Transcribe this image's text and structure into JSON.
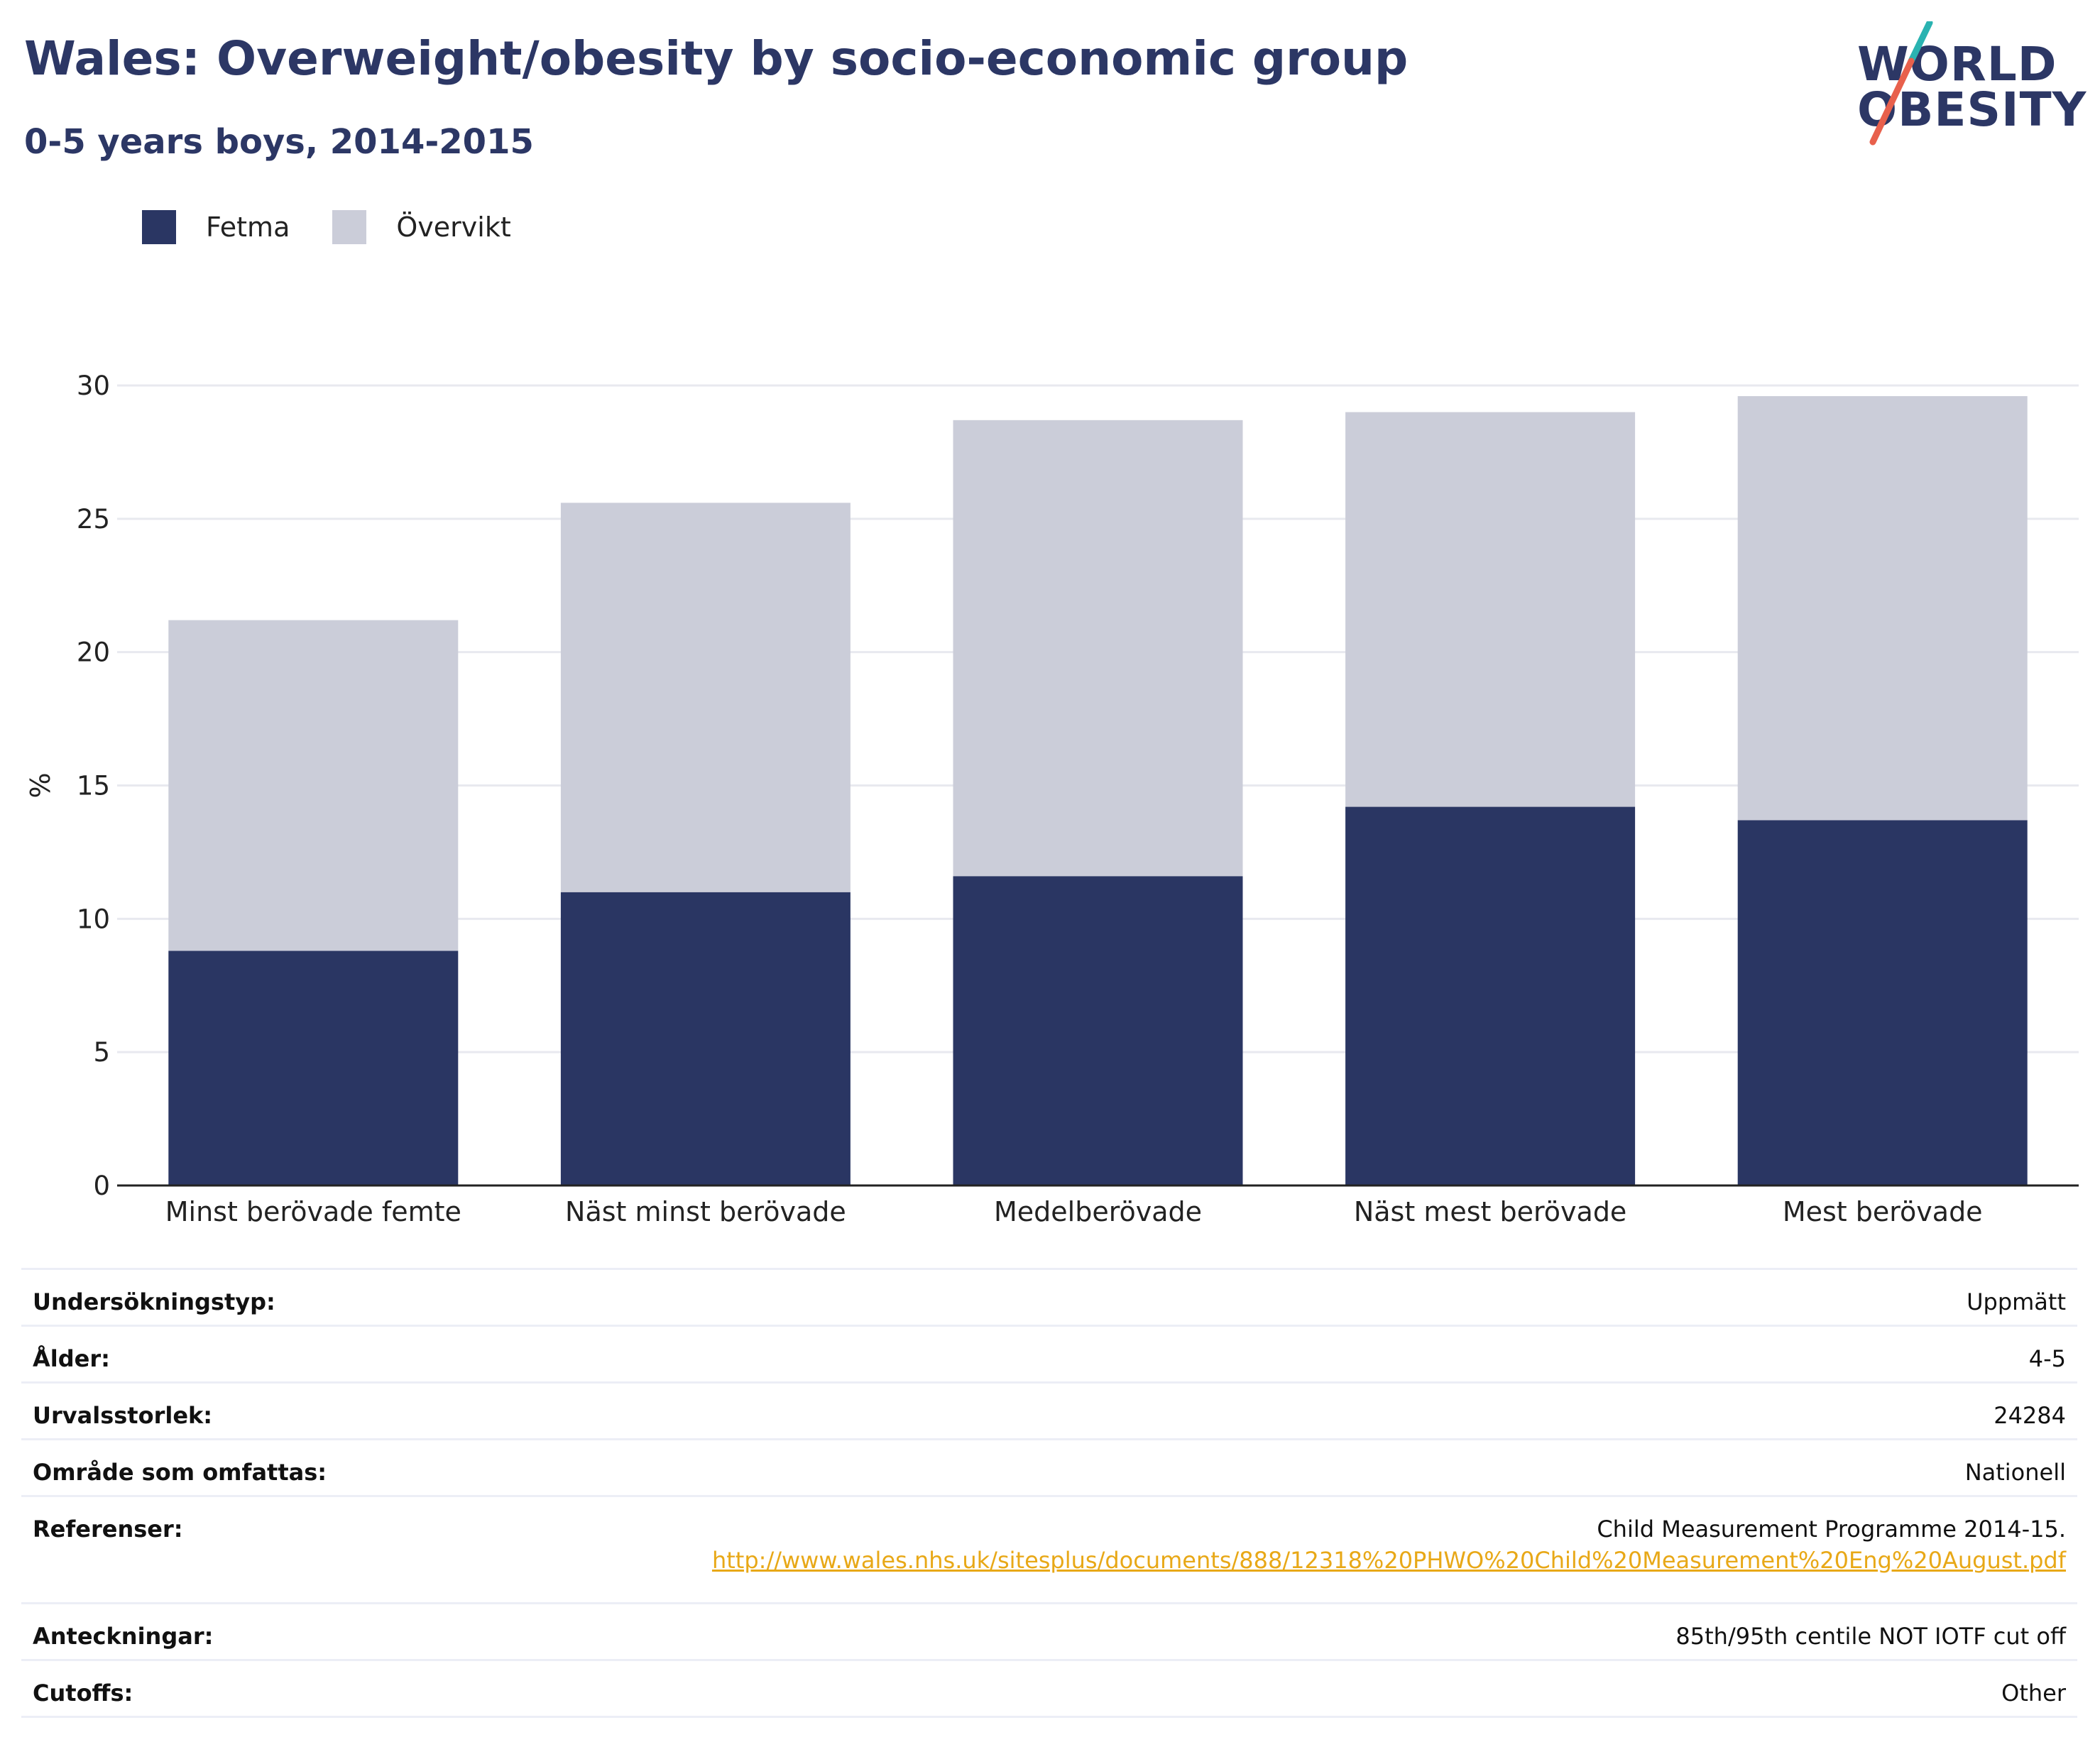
{
  "header": {
    "title": "Wales: Overweight/obesity by socio-economic group",
    "subtitle": "0-5 years boys, 2014-2015"
  },
  "logo": {
    "line1": "WORLD",
    "line2": "OBESITY",
    "slash_colors": [
      "#2ab3b1",
      "#e8604c"
    ]
  },
  "colors": {
    "fetma": "#2a3663",
    "overvikt": "#cbcdd9",
    "grid": "#e8e9ef",
    "axis": "#222222",
    "link": "#e8a817"
  },
  "legend": {
    "items": [
      {
        "label": "Fetma",
        "color": "#2a3663"
      },
      {
        "label": "Övervikt",
        "color": "#cbcdd9"
      }
    ]
  },
  "chart_data": {
    "type": "bar",
    "stacked": true,
    "categories": [
      "Minst berövade femte",
      "Näst minst berövade",
      "Medelberövade",
      "Näst mest berövade",
      "Mest berövade"
    ],
    "series": [
      {
        "name": "Fetma",
        "color": "#2a3663",
        "values": [
          8.8,
          11.0,
          11.6,
          14.2,
          13.7
        ]
      },
      {
        "name": "Övervikt",
        "color": "#cbcdd9",
        "values": [
          12.4,
          14.6,
          17.1,
          14.8,
          15.9
        ]
      }
    ],
    "totals": [
      21.2,
      25.6,
      28.7,
      29.0,
      29.6
    ],
    "title": "Wales: Overweight/obesity by socio-economic group",
    "xlabel": "",
    "ylabel": "%",
    "ylim": [
      0,
      30
    ],
    "yticks": [
      0,
      5,
      10,
      15,
      20,
      25,
      30
    ],
    "grid": true,
    "legend_position": "top-left"
  },
  "info": {
    "rows": [
      {
        "key": "Undersökningstyp:",
        "value": "Uppmätt"
      },
      {
        "key": "Ålder:",
        "value": "4-5"
      },
      {
        "key": "Urvalsstorlek:",
        "value": "24284"
      },
      {
        "key": "Område som omfattas:",
        "value": "Nationell"
      }
    ],
    "references": {
      "key": "Referenser:",
      "value": "Child Measurement Programme 2014-15.",
      "link": "http://www.wales.nhs.uk/sitesplus/documents/888/12318%20PHWO%20Child%20Measurement%20Eng%20August.pdf"
    },
    "rows_after": [
      {
        "key": "Anteckningar:",
        "value": "85th/95th centile NOT IOTF cut off"
      },
      {
        "key": "Cutoffs:",
        "value": "Other"
      }
    ]
  }
}
